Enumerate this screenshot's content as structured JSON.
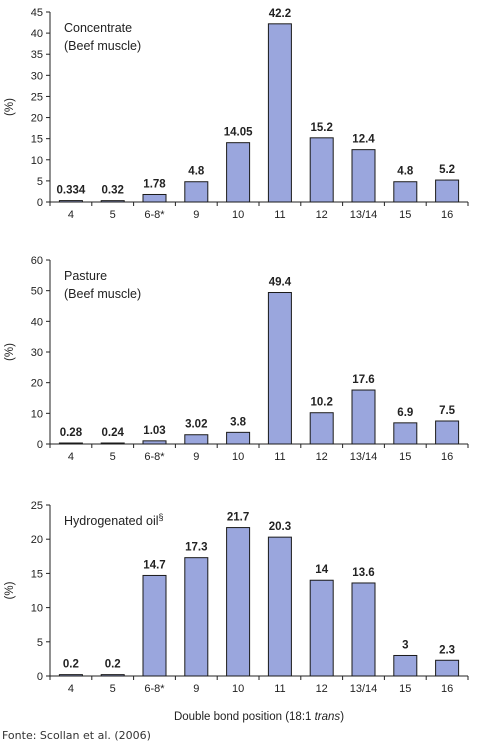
{
  "chart_data": [
    {
      "type": "bar",
      "title": "Concentrate",
      "subtitle": "(Beef muscle)",
      "ylabel": "(%)",
      "ylim": [
        0,
        45
      ],
      "yticks": [
        0,
        5,
        10,
        15,
        20,
        25,
        30,
        35,
        40,
        45
      ],
      "categories": [
        "4",
        "5",
        "6-8*",
        "9",
        "10",
        "11",
        "12",
        "13/14",
        "15",
        "16"
      ],
      "values": [
        0.334,
        0.32,
        1.78,
        4.8,
        14.05,
        42.2,
        15.2,
        12.4,
        4.8,
        5.2
      ],
      "value_labels": [
        "0.334",
        "0.32",
        "1.78",
        "4.8",
        "14.05",
        "42.2",
        "15.2",
        "12.4",
        "4.8",
        "5.2"
      ],
      "bar_color": "#9aa6dd"
    },
    {
      "type": "bar",
      "title": "Pasture",
      "subtitle": "(Beef muscle)",
      "ylabel": "(%)",
      "ylim": [
        0,
        60
      ],
      "yticks": [
        0,
        10,
        20,
        30,
        40,
        50,
        60
      ],
      "categories": [
        "4",
        "5",
        "6-8*",
        "9",
        "10",
        "11",
        "12",
        "13/14",
        "15",
        "16"
      ],
      "values": [
        0.28,
        0.24,
        1.03,
        3.02,
        3.8,
        49.4,
        10.2,
        17.6,
        6.9,
        7.5
      ],
      "value_labels": [
        "0.28",
        "0.24",
        "1.03",
        "3.02",
        "3.8",
        "49.4",
        "10.2",
        "17.6",
        "6.9",
        "7.5"
      ],
      "bar_color": "#9aa6dd"
    },
    {
      "type": "bar",
      "title": "Hydrogenated oil",
      "title_superscript": "§",
      "ylabel": "(%)",
      "ylim": [
        0,
        25
      ],
      "yticks": [
        0,
        5,
        10,
        15,
        20,
        25
      ],
      "categories": [
        "4",
        "5",
        "6-8*",
        "9",
        "10",
        "11",
        "12",
        "13/14",
        "15",
        "16"
      ],
      "values": [
        0.2,
        0.2,
        14.7,
        17.3,
        21.7,
        20.3,
        14,
        13.6,
        3,
        2.3
      ],
      "value_labels": [
        "0.2",
        "0.2",
        "14.7",
        "17.3",
        "21.7",
        "20.3",
        "14",
        "13.6",
        "3",
        "2.3"
      ],
      "bar_color": "#9aa6dd",
      "xlabel": "Double bond position (18:1 ",
      "xlabel_italic": "trans",
      "xlabel_end": ")"
    }
  ],
  "source": "Fonte: Scollan et al. (2006)"
}
